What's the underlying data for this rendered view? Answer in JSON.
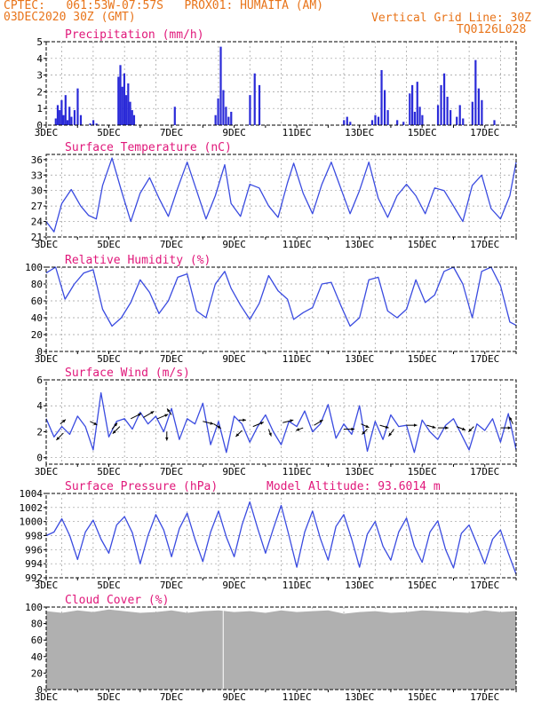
{
  "header": {
    "line1": "CPTEC:   061:53W-07:57S   PROX01: HUMAITA (AM)",
    "line2": "03DEC2020 30Z (GMT)",
    "grid_note": "Vertical Grid Line: 30Z",
    "code": "TQ0126L028"
  },
  "colors": {
    "header": "#e8741a",
    "panel_title": "#e0177a",
    "series": "#3a4be0",
    "bars": "#2a2ad8",
    "cloud": "#b0b0b0",
    "vector": "#000000"
  },
  "chart_data": [
    {
      "id": "precip",
      "type": "bar",
      "title": "Precipitation (mm/h)",
      "ylim": [
        0,
        5
      ],
      "yticks": [
        0,
        1,
        2,
        3,
        4,
        5
      ],
      "xlabels": [
        "3DEC",
        "5DEC",
        "7DEC",
        "9DEC",
        "11DEC",
        "13DEC",
        "15DEC",
        "17DEC"
      ],
      "x_range_days": [
        3,
        18
      ],
      "bursts": [
        {
          "start": 3.3,
          "end": 3.8,
          "values": [
            0.4,
            1.2,
            0.9,
            1.5,
            0.6,
            1.8,
            0.3,
            1.1,
            0.5
          ]
        },
        {
          "start": 3.9,
          "end": 4.1,
          "values": [
            0.9,
            2.2,
            0.6
          ]
        },
        {
          "start": 4.4,
          "end": 4.6,
          "values": [
            0.1,
            0.3,
            0.1
          ]
        },
        {
          "start": 5.3,
          "end": 5.8,
          "values": [
            2.9,
            3.6,
            2.3,
            3.1,
            1.8,
            2.5,
            1.4,
            0.9,
            0.6
          ]
        },
        {
          "start": 7.1,
          "end": 7.2,
          "values": [
            1.1
          ]
        },
        {
          "start": 8.4,
          "end": 8.9,
          "values": [
            0.6,
            1.6,
            4.7,
            2.1,
            1.1,
            0.5,
            0.8
          ]
        },
        {
          "start": 9.5,
          "end": 9.8,
          "values": [
            1.8,
            3.1,
            2.4
          ]
        },
        {
          "start": 12.5,
          "end": 12.7,
          "values": [
            0.3,
            0.5,
            0.2
          ]
        },
        {
          "start": 13.4,
          "end": 13.9,
          "values": [
            0.3,
            0.6,
            0.5,
            3.3,
            2.1,
            0.9
          ]
        },
        {
          "start": 14.2,
          "end": 14.4,
          "values": [
            0.3,
            0.2
          ]
        },
        {
          "start": 14.6,
          "end": 15.0,
          "values": [
            1.9,
            2.4,
            0.8,
            2.6,
            1.1,
            0.6
          ]
        },
        {
          "start": 15.5,
          "end": 15.9,
          "values": [
            1.2,
            2.4,
            3.1,
            1.7,
            0.9
          ]
        },
        {
          "start": 16.1,
          "end": 16.3,
          "values": [
            0.5,
            1.2,
            0.4
          ]
        },
        {
          "start": 16.6,
          "end": 16.9,
          "values": [
            1.4,
            3.9,
            2.2,
            1.5
          ]
        },
        {
          "start": 17.3,
          "end": 17.4,
          "values": [
            0.3
          ]
        }
      ]
    },
    {
      "id": "temp",
      "type": "line",
      "title": "Surface Temperature (nC)",
      "ylim": [
        21,
        37
      ],
      "yticks": [
        21,
        24,
        27,
        30,
        33,
        36
      ],
      "xlabels": [
        "3DEC",
        "5DEC",
        "7DEC",
        "9DEC",
        "11DEC",
        "13DEC",
        "15DEC",
        "17DEC"
      ],
      "x_range_days": [
        3,
        18
      ],
      "x": [
        3.0,
        3.25,
        3.5,
        3.8,
        4.1,
        4.35,
        4.6,
        4.8,
        5.1,
        5.4,
        5.7,
        6.0,
        6.3,
        6.6,
        6.9,
        7.2,
        7.5,
        7.8,
        8.1,
        8.4,
        8.7,
        8.9,
        9.2,
        9.5,
        9.8,
        10.1,
        10.4,
        10.7,
        10.9,
        11.2,
        11.5,
        11.8,
        12.1,
        12.4,
        12.7,
        13.0,
        13.3,
        13.6,
        13.9,
        14.2,
        14.5,
        14.8,
        15.1,
        15.4,
        15.7,
        16.0,
        16.3,
        16.6,
        16.9,
        17.2,
        17.5,
        17.8,
        18.0
      ],
      "y": [
        24.0,
        22.0,
        27.5,
        30.2,
        27.0,
        25.2,
        24.5,
        31.0,
        36.3,
        30.0,
        24.0,
        29.5,
        32.5,
        28.5,
        25.0,
        30.5,
        35.5,
        30.0,
        24.5,
        29.0,
        35.0,
        27.5,
        25.0,
        31.2,
        30.5,
        27.0,
        24.8,
        31.5,
        35.3,
        29.5,
        25.5,
        31.2,
        35.5,
        30.5,
        25.5,
        30.0,
        35.5,
        28.5,
        24.8,
        29.0,
        31.2,
        29.0,
        25.5,
        30.5,
        30.0,
        27.0,
        24.0,
        31.0,
        33.0,
        26.5,
        24.5,
        29.0,
        35.5
      ]
    },
    {
      "id": "rh",
      "type": "line",
      "title": "Relative Humidity (%)",
      "ylim": [
        0,
        100
      ],
      "yticks": [
        0,
        20,
        40,
        60,
        80,
        100
      ],
      "xlabels": [
        "3DEC",
        "5DEC",
        "7DEC",
        "9DEC",
        "11DEC",
        "13DEC",
        "15DEC",
        "17DEC"
      ],
      "x_range_days": [
        3,
        18
      ],
      "x": [
        3.0,
        3.3,
        3.6,
        3.9,
        4.2,
        4.5,
        4.8,
        5.1,
        5.4,
        5.7,
        6.0,
        6.3,
        6.6,
        6.9,
        7.2,
        7.5,
        7.8,
        8.1,
        8.4,
        8.7,
        8.9,
        9.2,
        9.5,
        9.8,
        10.1,
        10.4,
        10.7,
        10.9,
        11.2,
        11.5,
        11.8,
        12.1,
        12.4,
        12.7,
        13.0,
        13.3,
        13.6,
        13.9,
        14.2,
        14.5,
        14.8,
        15.1,
        15.4,
        15.7,
        16.0,
        16.3,
        16.6,
        16.9,
        17.2,
        17.5,
        17.8,
        18.0
      ],
      "y": [
        93,
        100,
        62,
        80,
        93,
        97,
        50,
        30,
        40,
        58,
        85,
        70,
        45,
        60,
        88,
        92,
        48,
        40,
        80,
        95,
        75,
        55,
        38,
        57,
        90,
        72,
        62,
        38,
        46,
        52,
        80,
        82,
        55,
        30,
        40,
        85,
        88,
        48,
        40,
        50,
        85,
        58,
        67,
        95,
        100,
        80,
        40,
        95,
        100,
        78,
        35,
        31
      ]
    },
    {
      "id": "wind",
      "type": "line",
      "title": "Surface Wind (m/s)",
      "ylim": [
        -0.5,
        6
      ],
      "yticks": [
        0,
        2,
        4,
        6
      ],
      "xlabels": [
        "3DEC",
        "5DEC",
        "7DEC",
        "9DEC",
        "11DEC",
        "13DEC",
        "15DEC",
        "17DEC"
      ],
      "x_range_days": [
        3,
        18
      ],
      "x": [
        3.0,
        3.25,
        3.5,
        3.75,
        4.0,
        4.25,
        4.5,
        4.75,
        5.0,
        5.25,
        5.5,
        5.75,
        6.0,
        6.25,
        6.5,
        6.75,
        7.0,
        7.25,
        7.5,
        7.75,
        8.0,
        8.25,
        8.5,
        8.75,
        9.0,
        9.25,
        9.5,
        9.75,
        10.0,
        10.25,
        10.5,
        10.75,
        11.0,
        11.25,
        11.5,
        11.75,
        12.0,
        12.25,
        12.5,
        12.75,
        13.0,
        13.25,
        13.5,
        13.75,
        14.0,
        14.25,
        14.5,
        14.75,
        15.0,
        15.25,
        15.5,
        15.75,
        16.0,
        16.25,
        16.5,
        16.75,
        17.0,
        17.25,
        17.5,
        17.75,
        18.0
      ],
      "y": [
        3.0,
        1.6,
        2.4,
        1.8,
        3.2,
        2.4,
        0.6,
        5.0,
        1.6,
        2.8,
        3.0,
        2.2,
        3.5,
        2.6,
        3.2,
        2.0,
        3.8,
        1.4,
        3.0,
        2.6,
        4.2,
        1.0,
        2.8,
        0.4,
        3.2,
        2.6,
        1.2,
        2.4,
        3.3,
        2.0,
        1.0,
        2.8,
        2.4,
        3.6,
        2.0,
        2.6,
        4.1,
        1.5,
        2.6,
        1.8,
        4.0,
        0.5,
        2.8,
        1.4,
        3.3,
        2.4,
        2.5,
        0.4,
        2.9,
        2.0,
        1.4,
        2.5,
        3.0,
        1.8,
        0.6,
        2.6,
        2.1,
        3.0,
        1.2,
        3.4,
        0.6
      ],
      "vectors": [
        {
          "x": 3.55,
          "y": 1.9,
          "dx": -8,
          "dy": 8
        },
        {
          "x": 3.45,
          "y": 2.6,
          "dx": 6,
          "dy": -5
        },
        {
          "x": 4.4,
          "y": 2.8,
          "dx": 8,
          "dy": 4
        },
        {
          "x": 5.1,
          "y": 2.2,
          "dx": 6,
          "dy": -7
        },
        {
          "x": 5.35,
          "y": 2.4,
          "dx": -8,
          "dy": 8
        },
        {
          "x": 5.7,
          "y": 3.0,
          "dx": 12,
          "dy": -6
        },
        {
          "x": 6.1,
          "y": 3.1,
          "dx": 12,
          "dy": -7
        },
        {
          "x": 6.55,
          "y": 3.0,
          "dx": 12,
          "dy": -5
        },
        {
          "x": 6.85,
          "y": 2.0,
          "dx": 0,
          "dy": 10
        },
        {
          "x": 7.0,
          "y": 3.3,
          "dx": -5,
          "dy": -7
        },
        {
          "x": 8.0,
          "y": 2.8,
          "dx": 12,
          "dy": 3
        },
        {
          "x": 8.35,
          "y": 2.6,
          "dx": 8,
          "dy": 5
        },
        {
          "x": 9.15,
          "y": 2.9,
          "dx": 8,
          "dy": 0
        },
        {
          "x": 9.25,
          "y": 2.1,
          "dx": -7,
          "dy": 7
        },
        {
          "x": 9.6,
          "y": 2.4,
          "dx": 12,
          "dy": -5
        },
        {
          "x": 10.1,
          "y": 2.2,
          "dx": 3,
          "dy": 8
        },
        {
          "x": 10.55,
          "y": 2.7,
          "dx": 12,
          "dy": -3
        },
        {
          "x": 11.2,
          "y": 2.3,
          "dx": -8,
          "dy": 3
        },
        {
          "x": 11.55,
          "y": 2.5,
          "dx": 10,
          "dy": -6
        },
        {
          "x": 12.5,
          "y": 2.2,
          "dx": 12,
          "dy": 0
        },
        {
          "x": 13.05,
          "y": 2.6,
          "dx": 9,
          "dy": 4
        },
        {
          "x": 13.25,
          "y": 2.2,
          "dx": -6,
          "dy": 6
        },
        {
          "x": 13.65,
          "y": 2.5,
          "dx": 10,
          "dy": 3
        },
        {
          "x": 14.1,
          "y": 2.2,
          "dx": -6,
          "dy": 8
        },
        {
          "x": 14.5,
          "y": 2.5,
          "dx": 12,
          "dy": 0
        },
        {
          "x": 15.15,
          "y": 2.5,
          "dx": 10,
          "dy": 3
        },
        {
          "x": 15.5,
          "y": 2.3,
          "dx": 12,
          "dy": 0
        },
        {
          "x": 16.1,
          "y": 2.4,
          "dx": 10,
          "dy": 4
        },
        {
          "x": 16.65,
          "y": 2.4,
          "dx": -6,
          "dy": 6
        },
        {
          "x": 17.5,
          "y": 2.3,
          "dx": 12,
          "dy": 0
        },
        {
          "x": 17.9,
          "y": 2.6,
          "dx": -4,
          "dy": -8
        }
      ]
    },
    {
      "id": "pres",
      "type": "line",
      "title": "Surface Pressure (hPa)",
      "subtitle": "Model Altitude: 93.6014 m",
      "ylim": [
        992,
        1004
      ],
      "yticks": [
        992,
        994,
        996,
        998,
        1000,
        1002,
        1004
      ],
      "xlabels": [
        "3DEC",
        "5DEC",
        "7DEC",
        "9DEC",
        "11DEC",
        "13DEC",
        "15DEC",
        "17DEC"
      ],
      "x_range_days": [
        3,
        18
      ],
      "x": [
        3.0,
        3.25,
        3.5,
        3.75,
        4.0,
        4.25,
        4.5,
        4.75,
        5.0,
        5.25,
        5.5,
        5.75,
        6.0,
        6.25,
        6.5,
        6.75,
        7.0,
        7.25,
        7.5,
        7.75,
        8.0,
        8.25,
        8.5,
        8.75,
        9.0,
        9.25,
        9.5,
        9.75,
        10.0,
        10.25,
        10.5,
        10.75,
        11.0,
        11.25,
        11.5,
        11.75,
        12.0,
        12.25,
        12.5,
        12.75,
        13.0,
        13.25,
        13.5,
        13.75,
        14.0,
        14.25,
        14.5,
        14.75,
        15.0,
        15.25,
        15.5,
        15.75,
        16.0,
        16.25,
        16.5,
        16.75,
        17.0,
        17.25,
        17.5,
        17.75,
        18.0
      ],
      "y": [
        998.0,
        998.5,
        1000.4,
        998.0,
        994.6,
        998.5,
        1000.2,
        997.5,
        995.5,
        999.5,
        1000.7,
        998.4,
        994.0,
        998.0,
        1001.0,
        998.8,
        995.0,
        999.0,
        1001.2,
        997.5,
        994.3,
        998.5,
        1001.5,
        997.8,
        995.0,
        999.5,
        1002.8,
        999.0,
        995.5,
        999.0,
        1002.3,
        998.0,
        993.5,
        998.5,
        1001.5,
        997.6,
        994.5,
        999.3,
        1001.0,
        997.5,
        993.5,
        998.2,
        1000.0,
        996.5,
        994.5,
        998.5,
        1000.5,
        996.5,
        994.2,
        998.5,
        1000.1,
        996.0,
        993.4,
        998.3,
        999.5,
        996.8,
        994.0,
        997.5,
        998.8,
        995.5,
        992.5
      ]
    },
    {
      "id": "cloud",
      "type": "area",
      "title": "Cloud Cover (%)",
      "ylim": [
        0,
        100
      ],
      "yticks": [
        0,
        20,
        40,
        60,
        80,
        100
      ],
      "xlabels": [
        "3DEC",
        "5DEC",
        "7DEC",
        "9DEC",
        "11DEC",
        "13DEC",
        "15DEC",
        "17DEC"
      ],
      "x_range_days": [
        3,
        18
      ],
      "x": [
        3.0,
        3.5,
        4.0,
        4.5,
        5.0,
        5.5,
        6.0,
        6.5,
        7.0,
        7.5,
        8.0,
        8.5,
        9.0,
        9.5,
        10.0,
        10.5,
        11.0,
        11.5,
        12.0,
        12.5,
        13.0,
        13.5,
        14.0,
        14.5,
        15.0,
        15.5,
        16.0,
        16.5,
        17.0,
        17.5,
        18.0
      ],
      "y": [
        95,
        93,
        96,
        94,
        97,
        95,
        93,
        94,
        96,
        93,
        95,
        96,
        94,
        95,
        93,
        96,
        94,
        95,
        96,
        92,
        94,
        95,
        93,
        94,
        96,
        95,
        94,
        93,
        96,
        94,
        95
      ]
    }
  ]
}
